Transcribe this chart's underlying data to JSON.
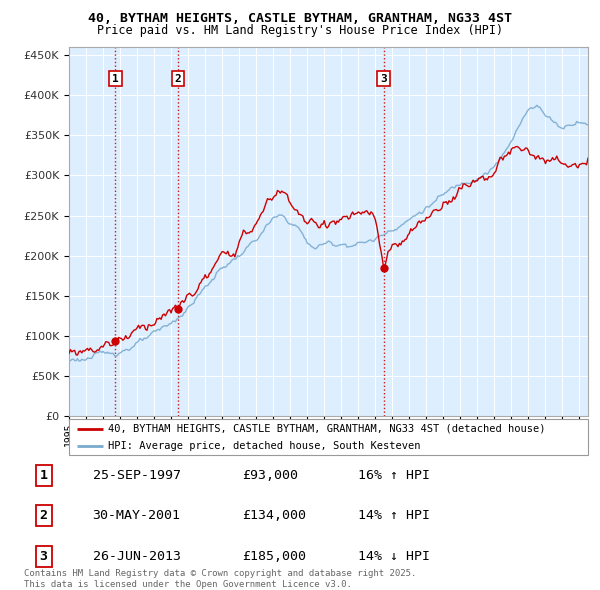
{
  "title": "40, BYTHAM HEIGHTS, CASTLE BYTHAM, GRANTHAM, NG33 4ST",
  "subtitle": "Price paid vs. HM Land Registry's House Price Index (HPI)",
  "ylim": [
    0,
    460000
  ],
  "yticks": [
    0,
    50000,
    100000,
    150000,
    200000,
    250000,
    300000,
    350000,
    400000,
    450000
  ],
  "xlim_start": 1995.0,
  "xlim_end": 2025.5,
  "legend_line1": "40, BYTHAM HEIGHTS, CASTLE BYTHAM, GRANTHAM, NG33 4ST (detached house)",
  "legend_line2": "HPI: Average price, detached house, South Kesteven",
  "sale1_date": 1997.73,
  "sale1_price": 93000,
  "sale1_label": "1",
  "sale2_date": 2001.41,
  "sale2_price": 134000,
  "sale2_label": "2",
  "sale3_date": 2013.49,
  "sale3_price": 185000,
  "sale3_label": "3",
  "table_data": [
    [
      "1",
      "25-SEP-1997",
      "£93,000",
      "16% ↑ HPI"
    ],
    [
      "2",
      "30-MAY-2001",
      "£134,000",
      "14% ↑ HPI"
    ],
    [
      "3",
      "26-JUN-2013",
      "£185,000",
      "14% ↓ HPI"
    ]
  ],
  "footnote": "Contains HM Land Registry data © Crown copyright and database right 2025.\nThis data is licensed under the Open Government Licence v3.0.",
  "line_color_red": "#cc0000",
  "line_color_blue": "#7aabcf",
  "bg_color": "#ffffff",
  "chart_bg_color": "#ddeeff",
  "grid_color": "#ffffff"
}
